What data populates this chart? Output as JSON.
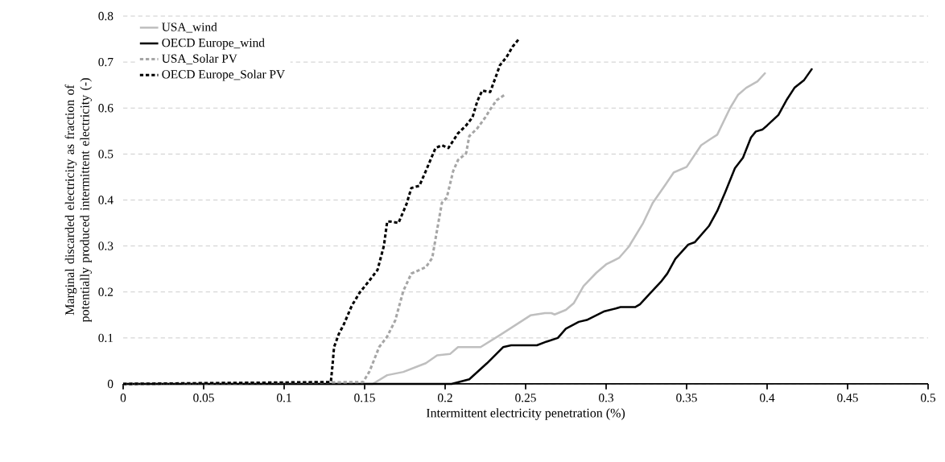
{
  "chart_data": {
    "type": "line",
    "xlabel": "Intermittent electricity penetration (%)",
    "ylabel": "Marginal discarded electricity as fraction of potentially produced intermittent electricity (-)",
    "xlim": [
      0,
      0.5
    ],
    "ylim": [
      0,
      0.8
    ],
    "xticks": [
      0,
      0.05,
      0.1,
      0.15,
      0.2,
      0.25,
      0.3,
      0.35,
      0.4,
      0.45,
      0.5
    ],
    "yticks": [
      0,
      0.1,
      0.2,
      0.3,
      0.4,
      0.5,
      0.6,
      0.7,
      0.8
    ],
    "grid": "y",
    "legend": "top left",
    "marker": "none",
    "series": [
      {
        "name": "USA_wind",
        "color": "#bfbfbf",
        "line_style": "solid",
        "x": [
          0,
          0.155,
          0.164,
          0.174,
          0.188,
          0.195,
          0.203,
          0.208,
          0.222,
          0.234,
          0.253,
          0.262,
          0.266,
          0.268,
          0.275,
          0.28,
          0.286,
          0.294,
          0.3,
          0.308,
          0.314,
          0.323,
          0.329,
          0.337,
          0.342,
          0.35,
          0.359,
          0.365,
          0.369,
          0.377,
          0.382,
          0.387,
          0.394,
          0.399
        ],
        "values": [
          0,
          0,
          0.019,
          0.026,
          0.045,
          0.062,
          0.065,
          0.08,
          0.08,
          0.106,
          0.149,
          0.154,
          0.154,
          0.151,
          0.161,
          0.176,
          0.213,
          0.242,
          0.26,
          0.274,
          0.298,
          0.35,
          0.394,
          0.434,
          0.46,
          0.472,
          0.519,
          0.533,
          0.542,
          0.6,
          0.629,
          0.644,
          0.658,
          0.677
        ]
      },
      {
        "name": "OECD Europe_wind",
        "color": "#000000",
        "line_style": "solid",
        "x": [
          0,
          0.204,
          0.215,
          0.226,
          0.236,
          0.241,
          0.257,
          0.263,
          0.27,
          0.275,
          0.283,
          0.288,
          0.299,
          0.306,
          0.309,
          0.318,
          0.321,
          0.327,
          0.334,
          0.338,
          0.343,
          0.351,
          0.355,
          0.364,
          0.369,
          0.374,
          0.38,
          0.385,
          0.39,
          0.393,
          0.397,
          0.4,
          0.407,
          0.412,
          0.417,
          0.423,
          0.428
        ],
        "values": [
          0,
          0,
          0.01,
          0.045,
          0.08,
          0.084,
          0.084,
          0.092,
          0.1,
          0.12,
          0.135,
          0.139,
          0.158,
          0.164,
          0.167,
          0.167,
          0.173,
          0.196,
          0.222,
          0.24,
          0.272,
          0.303,
          0.308,
          0.344,
          0.376,
          0.417,
          0.469,
          0.492,
          0.536,
          0.549,
          0.553,
          0.562,
          0.585,
          0.617,
          0.644,
          0.661,
          0.686
        ]
      },
      {
        "name": "USA_Solar PV",
        "color": "#a6a6a6",
        "line_style": "dashed",
        "x": [
          0,
          0.149,
          0.153,
          0.159,
          0.164,
          0.169,
          0.174,
          0.179,
          0.188,
          0.192,
          0.195,
          0.198,
          0.201,
          0.205,
          0.208,
          0.213,
          0.215,
          0.22,
          0.225,
          0.228,
          0.232,
          0.237
        ],
        "values": [
          0,
          0.004,
          0.027,
          0.08,
          0.103,
          0.138,
          0.202,
          0.24,
          0.254,
          0.274,
          0.335,
          0.394,
          0.405,
          0.463,
          0.487,
          0.501,
          0.539,
          0.556,
          0.58,
          0.597,
          0.617,
          0.629
        ]
      },
      {
        "name": "OECD Europe_Solar PV",
        "color": "#000000",
        "line_style": "dashed",
        "x": [
          0,
          0.129,
          0.13,
          0.131,
          0.134,
          0.137,
          0.142,
          0.147,
          0.153,
          0.158,
          0.162,
          0.164,
          0.166,
          0.171,
          0.176,
          0.179,
          0.184,
          0.188,
          0.194,
          0.198,
          0.202,
          0.208,
          0.213,
          0.217,
          0.22,
          0.223,
          0.228,
          0.232,
          0.234,
          0.238,
          0.242,
          0.246
        ],
        "values": [
          0,
          0.004,
          0.039,
          0.08,
          0.109,
          0.129,
          0.17,
          0.199,
          0.225,
          0.248,
          0.301,
          0.353,
          0.353,
          0.35,
          0.391,
          0.426,
          0.431,
          0.463,
          0.513,
          0.519,
          0.513,
          0.545,
          0.562,
          0.58,
          0.615,
          0.638,
          0.635,
          0.673,
          0.693,
          0.71,
          0.734,
          0.751
        ]
      }
    ]
  }
}
